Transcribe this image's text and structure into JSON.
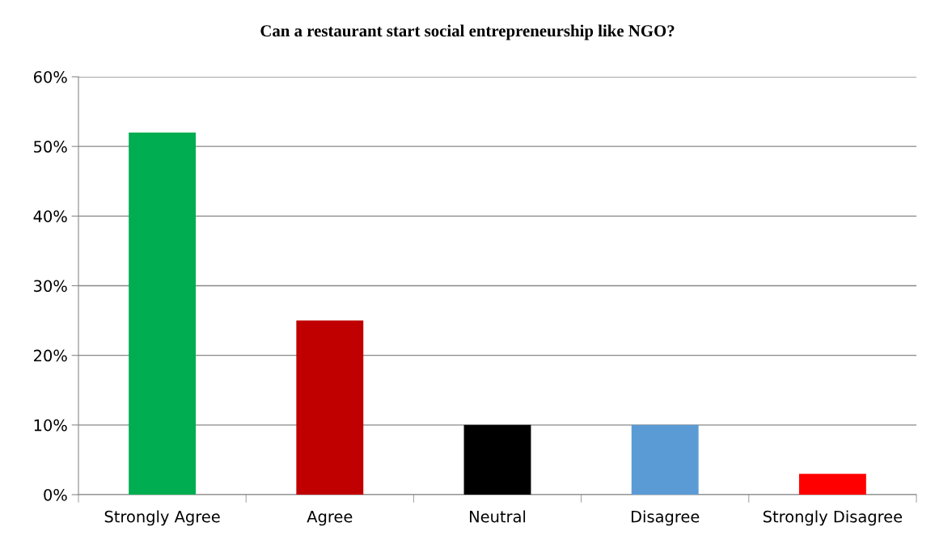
{
  "chart_data": {
    "type": "bar",
    "title": "Can a restaurant start social entrepreneurship like NGO?",
    "categories": [
      "Strongly Agree",
      "Agree",
      "Neutral",
      "Disagree",
      "Strongly Disagree"
    ],
    "values": [
      52,
      25,
      10,
      10,
      3
    ],
    "colors": [
      "#00ad50",
      "#c00000",
      "#000000",
      "#5b9bd5",
      "#ff0000"
    ],
    "ylim": [
      0,
      60
    ],
    "yticks": [
      {
        "value": 0,
        "label": "0%"
      },
      {
        "value": 10,
        "label": "10%"
      },
      {
        "value": 20,
        "label": "20%"
      },
      {
        "value": 30,
        "label": "30%"
      },
      {
        "value": 40,
        "label": "40%"
      },
      {
        "value": 50,
        "label": "50%"
      },
      {
        "value": 60,
        "label": "60%"
      }
    ],
    "grid": "y"
  }
}
